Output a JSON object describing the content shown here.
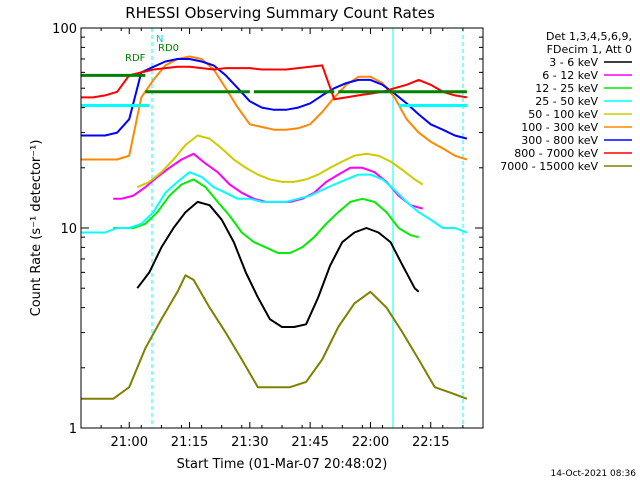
{
  "chart_data": {
    "type": "line",
    "title": "RHESSI Observing Summary Count Rates",
    "xlabel": "Start Time (01-Mar-07 20:48:02)",
    "ylabel": "Count Rate (s⁻¹ detector⁻¹)",
    "yscale": "log",
    "ylim": [
      1,
      100
    ],
    "xlim_minutes_after_2048": [
      0,
      100
    ],
    "x_tick_labels": [
      "21:00",
      "21:15",
      "21:30",
      "21:45",
      "22:00",
      "22:15"
    ],
    "x_tick_minutes": [
      12,
      27,
      42,
      57,
      72,
      87
    ],
    "y_tick_labels": [
      "1",
      "10",
      "100"
    ],
    "y_tick_values": [
      1,
      10,
      100
    ],
    "legend": {
      "position": "right",
      "header": [
        "Det 1,3,4,5,6,9,",
        "FDecim 1, Att 0"
      ],
      "entries": [
        "3 - 6 keV",
        "6 - 12 keV",
        "12 - 25 keV",
        "25 - 50 keV",
        "50 - 100 keV",
        "100 - 300 keV",
        "300 - 800 keV",
        "800 - 7000 keV",
        "7000 - 15000 keV"
      ]
    },
    "flag_labels": [
      "N",
      "RD0",
      "RDF"
    ],
    "timestamp": "14-Oct-2021 08:36",
    "series": [
      {
        "name": "3 - 6 keV",
        "color": "#000000",
        "x": [
          14,
          17,
          20,
          23,
          26,
          29,
          32,
          35,
          38,
          41,
          44,
          47,
          50,
          53,
          56,
          59,
          62,
          65,
          68,
          71,
          74,
          77,
          80,
          83,
          84
        ],
        "values": [
          5,
          6,
          8,
          10,
          12,
          13.5,
          13,
          11,
          8.5,
          6,
          4.5,
          3.5,
          3.2,
          3.2,
          3.3,
          4.5,
          6.5,
          8.5,
          9.5,
          10,
          9.5,
          8.5,
          6.5,
          5,
          4.8
        ]
      },
      {
        "name": "6 - 12 keV",
        "color": "#ff00ff",
        "x": [
          8,
          10,
          13,
          16,
          19,
          22,
          25,
          28,
          31,
          34,
          37,
          40,
          43,
          46,
          49,
          52,
          55,
          58,
          61,
          64,
          67,
          70,
          73,
          76,
          79,
          82,
          85
        ],
        "values": [
          14,
          14,
          14.5,
          16,
          18,
          20,
          22,
          23.5,
          21,
          19,
          16.5,
          15,
          14,
          13.5,
          13.5,
          13.5,
          14,
          15,
          17,
          18.5,
          20,
          20,
          19,
          17,
          14.5,
          13,
          12.5
        ]
      },
      {
        "name": "12 - 25 keV",
        "color": "#00ee00",
        "x": [
          8,
          10,
          13,
          16,
          19,
          22,
          25,
          28,
          31,
          34,
          37,
          40,
          43,
          46,
          49,
          52,
          55,
          58,
          61,
          64,
          67,
          70,
          73,
          76,
          79,
          82,
          84
        ],
        "values": [
          10,
          10,
          10,
          10.5,
          12,
          14.5,
          16.5,
          17.5,
          16,
          13.5,
          11.5,
          9.5,
          8.5,
          8,
          7.5,
          7.5,
          8,
          9,
          10.5,
          12,
          13.5,
          14,
          13.5,
          12,
          10,
          9.2,
          9
        ]
      },
      {
        "name": "25 - 50 keV",
        "color": "#00ffff",
        "x": [
          0,
          3,
          6,
          9,
          12,
          15,
          18,
          21,
          24,
          27,
          30,
          33,
          36,
          39,
          42,
          45,
          48,
          51,
          54,
          57,
          60,
          63,
          66,
          69,
          72,
          75,
          78,
          81,
          84,
          87,
          90,
          93,
          96
        ],
        "values": [
          9.5,
          9.5,
          9.5,
          10,
          10,
          10.5,
          12,
          15,
          17,
          19,
          18,
          16,
          15,
          14,
          14,
          13.5,
          13.5,
          13.5,
          14,
          14.5,
          15.5,
          16.5,
          17.5,
          18.5,
          18.5,
          17.5,
          15.5,
          13.5,
          12,
          11,
          10,
          10,
          9.5
        ]
      },
      {
        "name": "50 - 100 keV",
        "color": "#cccc00",
        "x": [
          14,
          17,
          20,
          23,
          26,
          29,
          32,
          35,
          38,
          41,
          44,
          47,
          50,
          53,
          56,
          59,
          62,
          65,
          68,
          71,
          74,
          77,
          80,
          83,
          85
        ],
        "values": [
          16,
          17,
          19,
          22,
          26,
          29,
          28,
          25,
          22,
          20,
          18.5,
          17.5,
          17,
          17,
          17.5,
          18.5,
          20,
          21.5,
          23,
          23.5,
          23,
          21.5,
          19.5,
          17.5,
          16.5
        ]
      },
      {
        "name": "100 - 300 keV",
        "color": "#ff8800",
        "x": [
          0,
          3,
          6,
          9,
          12,
          15,
          18,
          21,
          24,
          27,
          30,
          33,
          36,
          39,
          42,
          45,
          48,
          51,
          54,
          57,
          60,
          63,
          66,
          69,
          72,
          75,
          78,
          81,
          84,
          87,
          90,
          93,
          96
        ],
        "values": [
          22,
          22,
          22,
          22,
          23,
          45,
          55,
          65,
          70,
          72,
          70,
          62,
          50,
          40,
          33,
          32,
          31,
          31,
          31.5,
          33,
          38,
          45,
          52,
          57,
          57,
          53,
          45,
          35,
          30,
          27,
          25,
          23,
          22
        ]
      },
      {
        "name": "300 - 800 keV",
        "color": "#0000ff",
        "x": [
          0,
          3,
          6,
          9,
          12,
          15,
          18,
          21,
          24,
          27,
          30,
          33,
          36,
          39,
          42,
          45,
          48,
          51,
          54,
          57,
          60,
          63,
          66,
          69,
          72,
          75,
          78,
          81,
          84,
          87,
          90,
          93,
          96
        ],
        "values": [
          29,
          29,
          29,
          30,
          35,
          60,
          64,
          68,
          70,
          70,
          68,
          65,
          58,
          50,
          43,
          40,
          39,
          39,
          40,
          42,
          46,
          50,
          53,
          55,
          55,
          52,
          47,
          42,
          37,
          33,
          31,
          29,
          28
        ]
      },
      {
        "name": "800 - 7000 keV",
        "color": "#ff0000",
        "x": [
          0,
          3,
          6,
          9,
          12,
          15,
          18,
          21,
          24,
          27,
          30,
          33,
          36,
          39,
          42,
          45,
          48,
          51,
          54,
          57,
          60,
          63,
          66,
          69,
          72,
          75,
          78,
          81,
          84,
          87,
          90,
          93,
          96
        ],
        "values": [
          45,
          45,
          46,
          48,
          58,
          60,
          62,
          63,
          64,
          64,
          63,
          62,
          63,
          63,
          63,
          62,
          62,
          62,
          63,
          64,
          65,
          44,
          45,
          46,
          47,
          48,
          50,
          52,
          55,
          52,
          48,
          46,
          45
        ]
      },
      {
        "name": "7000 - 15000 keV",
        "color": "#808000",
        "x": [
          0,
          4,
          8,
          12,
          16,
          20,
          24,
          26,
          28,
          32,
          36,
          40,
          44,
          48,
          52,
          56,
          60,
          64,
          68,
          72,
          76,
          80,
          84,
          88,
          92,
          96
        ],
        "values": [
          1.4,
          1.4,
          1.4,
          1.6,
          2.5,
          3.5,
          4.8,
          5.8,
          5.5,
          4,
          3,
          2.2,
          1.6,
          1.6,
          1.6,
          1.7,
          2.2,
          3.2,
          4.2,
          4.8,
          4,
          3,
          2.2,
          1.6,
          1.5,
          1.4
        ]
      }
    ],
    "flags": [
      {
        "name": "N",
        "color": "#00ffff",
        "segments": [
          [
            0,
            17
          ],
          [
            79,
            96
          ]
        ]
      },
      {
        "name": "RD0",
        "color": "#008000",
        "segments": [
          [
            16,
            42
          ],
          [
            43,
            63
          ],
          [
            64,
            96
          ]
        ]
      },
      {
        "name": "RDF",
        "color": "#008000",
        "segments": [
          [
            0,
            16
          ]
        ]
      }
    ]
  }
}
